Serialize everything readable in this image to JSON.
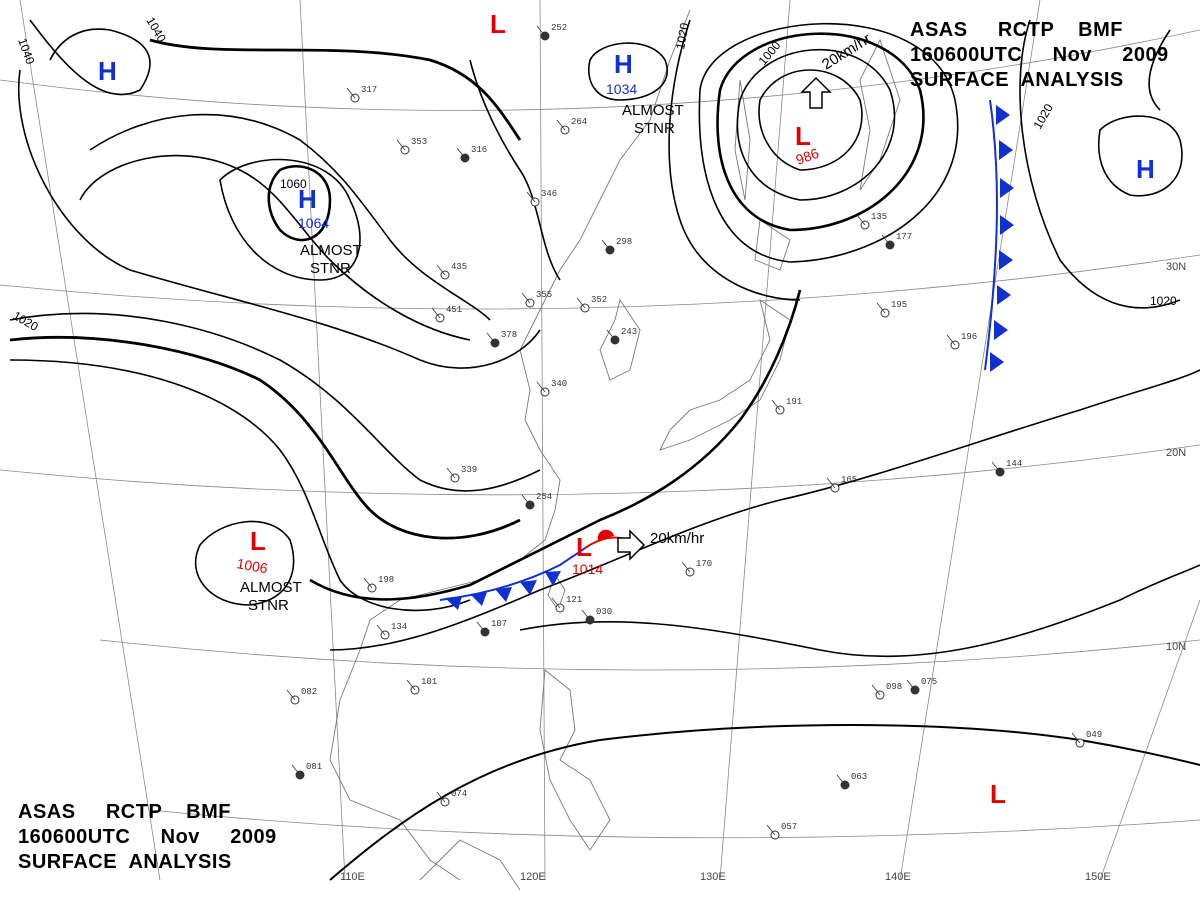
{
  "title": {
    "line1": "ASAS     RCTP    BMF",
    "line2": "160600UTC     Nov     2009",
    "line3": "SURFACE  ANALYSIS"
  },
  "colors": {
    "high": "#1030d0",
    "low": "#e00000",
    "cold_front": "#1030d0",
    "warm_front": "#e00000",
    "isobar": "#000000",
    "grid": "#888888",
    "coast": "#777777"
  },
  "axis_labels": {
    "lon": [
      "110E",
      "120E",
      "130E",
      "140E",
      "150E"
    ],
    "lat": [
      "30N",
      "20N",
      "10N"
    ]
  },
  "systems": [
    {
      "id": "high-nw",
      "type": "H",
      "value": "",
      "note": ""
    },
    {
      "id": "high-mongolia",
      "type": "H",
      "value": "1064",
      "note": "ALMOST\nSTNR"
    },
    {
      "id": "high-sea-of-japan",
      "type": "H",
      "value": "1034",
      "note": "ALMOST\nSTNR"
    },
    {
      "id": "high-east",
      "type": "H",
      "value": "",
      "note": ""
    },
    {
      "id": "low-north",
      "type": "L",
      "value": "",
      "note": ""
    },
    {
      "id": "low-kamchatka",
      "type": "L",
      "value": "986",
      "note": ""
    },
    {
      "id": "low-tibet",
      "type": "L",
      "value": "1006",
      "note": "ALMOST\nSTNR"
    },
    {
      "id": "low-taiwan",
      "type": "L",
      "value": "1014",
      "note": ""
    },
    {
      "id": "low-pacific",
      "type": "L",
      "value": "",
      "note": ""
    }
  ],
  "motion": [
    {
      "id": "motion-kamchatka",
      "text": "20km/hr"
    },
    {
      "id": "motion-taiwan",
      "text": "20km/hr"
    }
  ],
  "isobar_labels": [
    "1040",
    "1040",
    "1060",
    "1020",
    "1000",
    "1020",
    "1020",
    "1020"
  ],
  "station_samples": [
    "252",
    "317",
    "353",
    "316",
    "264",
    "346",
    "298",
    "435",
    "451",
    "378",
    "355",
    "352",
    "243",
    "340",
    "339",
    "254",
    "198",
    "134",
    "107",
    "101",
    "082",
    "081",
    "074",
    "121",
    "030",
    "170",
    "165",
    "144",
    "196",
    "195",
    "177",
    "135",
    "191",
    "075",
    "098",
    "049",
    "063",
    "057"
  ]
}
